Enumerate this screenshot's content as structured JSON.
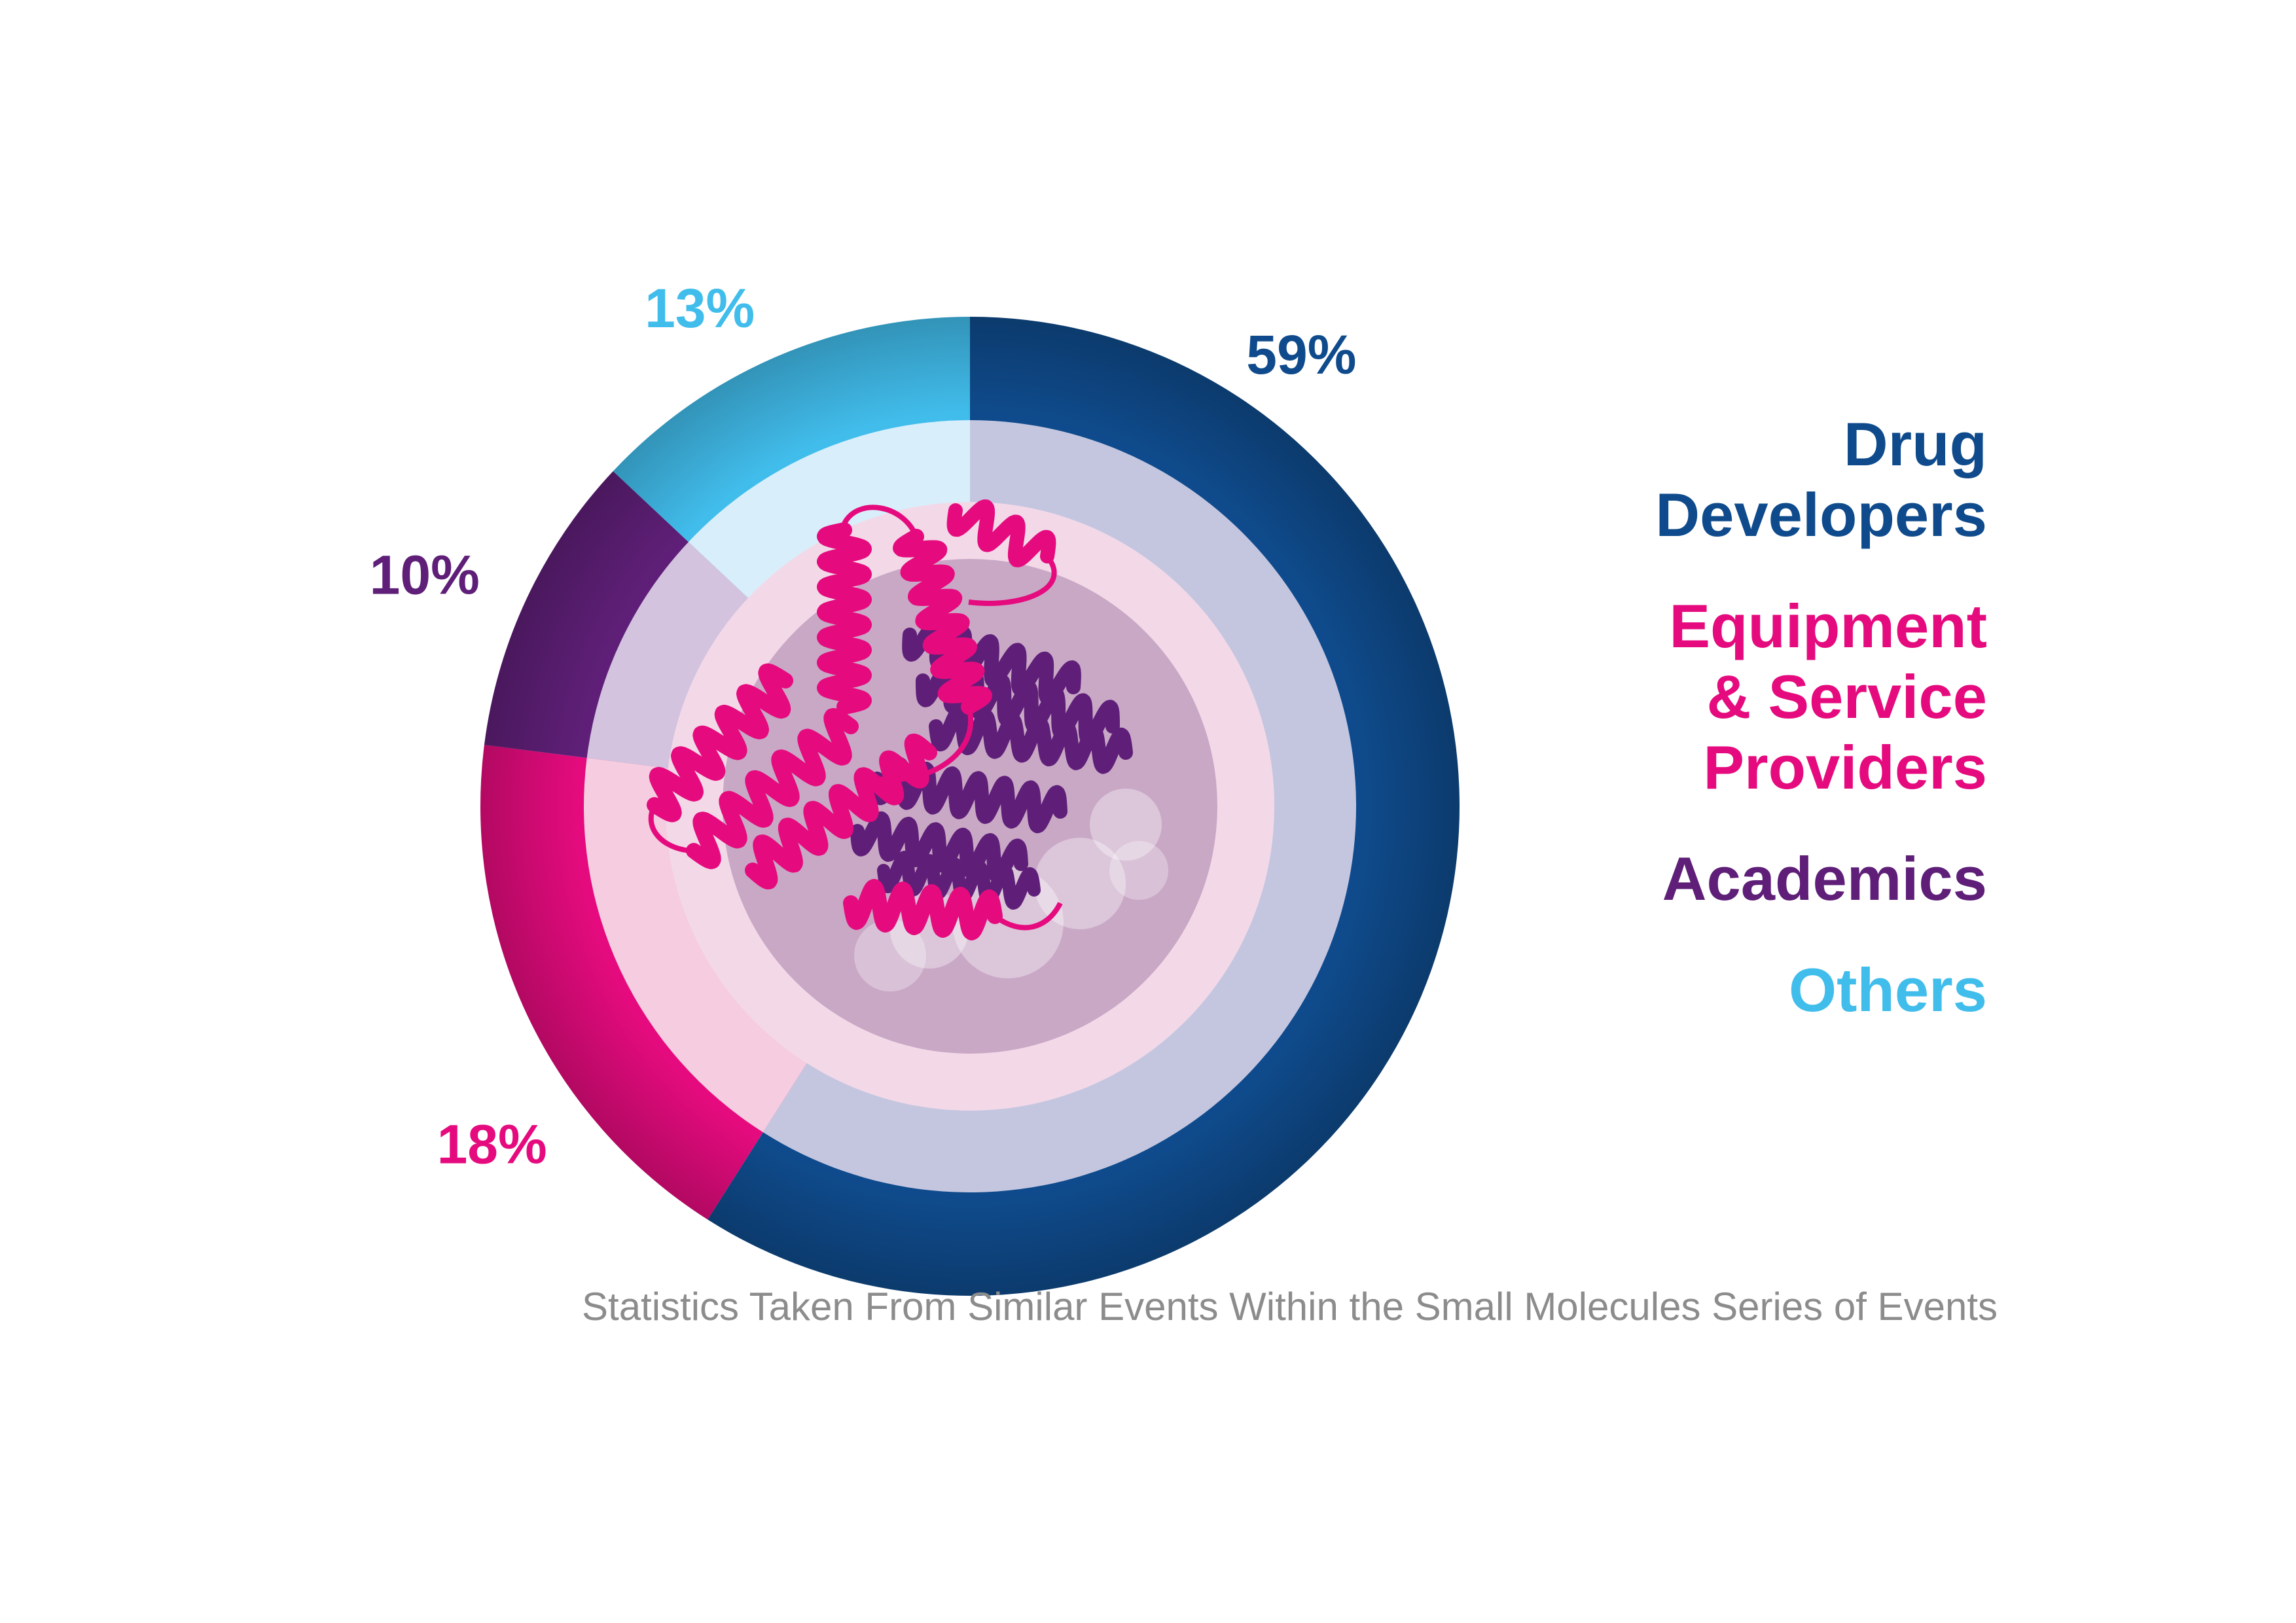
{
  "chart_data": {
    "type": "pie",
    "style": "donut",
    "start": "top",
    "direction": "clockwise",
    "slices": [
      {
        "name": "Drug Developers",
        "value": 59,
        "label": "59%",
        "color": "#0f4b8c",
        "inner_color": "#c4c6e0"
      },
      {
        "name": "Equipment & Service Providers",
        "value": 18,
        "label": "18%",
        "color": "#e50b7e",
        "inner_color": "#f5cce0"
      },
      {
        "name": "Academics",
        "value": 10,
        "label": "10%",
        "color": "#5f1f78",
        "inner_color": "#d3c3df"
      },
      {
        "name": "Others",
        "value": 13,
        "label": "13%",
        "color": "#41bdec",
        "inner_color": "#d8eefb"
      }
    ],
    "legend": {
      "placement": "right",
      "entries": [
        {
          "text": "Drug\nDevelopers",
          "color": "#0f4b8c"
        },
        {
          "text": "Equipment\n& Service\nProviders",
          "color": "#e50b7e"
        },
        {
          "text": "Academics",
          "color": "#5f1f78"
        },
        {
          "text": "Others",
          "color": "#41bdec"
        }
      ]
    },
    "footnote": "Statistics Taken From Similar Events Within the Small Molecules Series of Events"
  },
  "decoration": {
    "center_illustration": "protein-ribbon-structure",
    "ribbon_colors": [
      "#e50b7e",
      "#5f1f78"
    ],
    "core_color": "#c9a8c6",
    "ring_color": "#f3d9e8"
  }
}
